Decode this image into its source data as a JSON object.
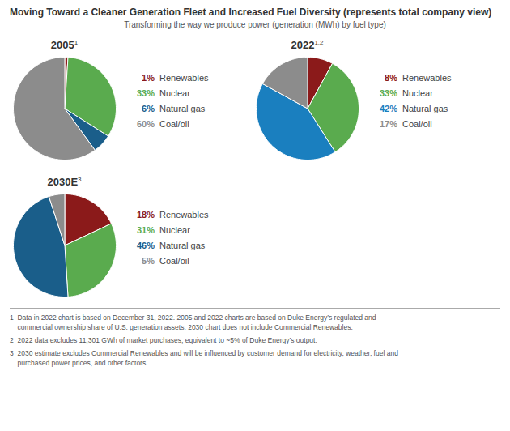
{
  "title": "Moving Toward a Cleaner Generation Fleet and Increased Fuel Diversity (represents total company view)",
  "subtitle": "Transforming the way we produce power (generation (MWh) by fuel type)",
  "annotations": [
    "1  Data in 2022 chart is based on December 31, 2022. 2005 and 2022 charts are based on Duke Energy’s regulated and\n    commercial ownership share of U.S. generation assets. 2030 chart does not include Commercial Renewables.",
    "2  2022 data excludes 11,301 GWh of market purchases, equivalent to ~5% of Duke Energy’s output.",
    "3  2030 estimate excludes Commercial Renewables and will be influenced by customer demand for electricity, weather, fuel and\n    purchased power prices, and other factors."
  ],
  "chart_data": [
    {
      "type": "pie",
      "title": "2005",
      "annotations": [
        "1"
      ],
      "categories": [
        "Renewables",
        "Nuclear",
        "Natural gas",
        "Coal/oil"
      ],
      "values": [
        1,
        33,
        6,
        60
      ],
      "value_labels": [
        "1%",
        "33%",
        "6%",
        "60%"
      ],
      "colors": [
        "#8b1a1a",
        "#5aab4e",
        "#1a5e8a",
        "#8c8c8c"
      ],
      "legend": "right"
    },
    {
      "type": "pie",
      "title": "2022",
      "annotations": [
        "1,2"
      ],
      "categories": [
        "Renewables",
        "Nuclear",
        "Natural gas",
        "Coal/oil"
      ],
      "values": [
        8,
        33,
        42,
        17
      ],
      "value_labels": [
        "8%",
        "33%",
        "42%",
        "17%"
      ],
      "colors": [
        "#8b1a1a",
        "#5aab4e",
        "#1a7fbf",
        "#8c8c8c"
      ],
      "legend": "right"
    },
    {
      "type": "pie",
      "title": "2030E",
      "annotations": [
        "3"
      ],
      "categories": [
        "Renewables",
        "Nuclear",
        "Natural gas",
        "Coal/oil"
      ],
      "values": [
        18,
        31,
        46,
        5
      ],
      "value_labels": [
        "18%",
        "31%",
        "46%",
        "5%"
      ],
      "colors": [
        "#8b1a1a",
        "#5aab4e",
        "#1a5e8a",
        "#8c8c8c"
      ],
      "legend": "right"
    }
  ]
}
